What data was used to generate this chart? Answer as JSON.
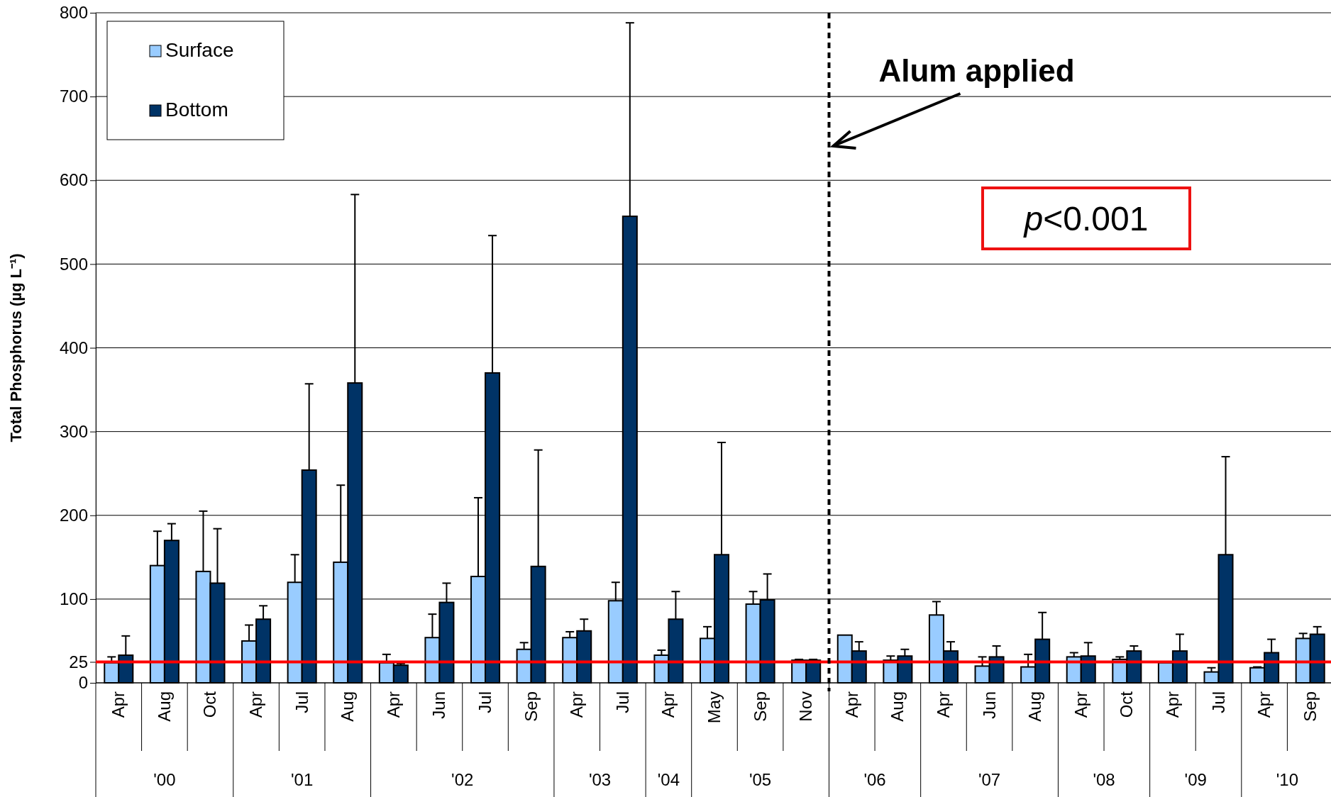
{
  "chart_data": {
    "type": "bar",
    "ylabel": "Total Phosphorus (µg L⁻¹)",
    "categories": [
      "Apr",
      "Aug",
      "Oct",
      "Apr",
      "Jul",
      "Aug",
      "Apr",
      "Jun",
      "Jul",
      "Sep",
      "Apr",
      "Jul",
      "Apr",
      "May",
      "Sep",
      "Nov",
      "Apr",
      "Aug",
      "Apr",
      "Jun",
      "Aug",
      "Apr",
      "Oct",
      "Apr",
      "Jul",
      "Apr",
      "Sep"
    ],
    "series": [
      {
        "name": "Surface",
        "color": "#99ccff",
        "values": [
          24,
          140,
          133,
          50,
          120,
          144,
          24,
          54,
          127,
          40,
          54,
          98,
          33,
          53,
          94,
          27,
          57,
          27,
          81,
          20,
          19,
          31,
          28,
          24,
          13,
          18,
          53
        ],
        "errors": [
          [
            24,
            31
          ],
          [
            140,
            181
          ],
          [
            133,
            205
          ],
          [
            50,
            69
          ],
          [
            120,
            153
          ],
          [
            144,
            236
          ],
          [
            24,
            34
          ],
          [
            54,
            82
          ],
          [
            127,
            221
          ],
          [
            40,
            48
          ],
          [
            54,
            61
          ],
          [
            98,
            120
          ],
          [
            33,
            39
          ],
          [
            53,
            67
          ],
          [
            94,
            109
          ],
          [
            27,
            28
          ],
          null,
          [
            27,
            32
          ],
          [
            81,
            97
          ],
          [
            20,
            31
          ],
          [
            19,
            34
          ],
          [
            31,
            36
          ],
          [
            28,
            31
          ],
          null,
          [
            13,
            18
          ],
          [
            18,
            19
          ],
          [
            53,
            59
          ]
        ]
      },
      {
        "name": "Bottom",
        "color": "#003366",
        "values": [
          33,
          170,
          119,
          76,
          254,
          358,
          21,
          96,
          370,
          139,
          62,
          557,
          76,
          153,
          99,
          27,
          38,
          32,
          38,
          31,
          52,
          32,
          38,
          38,
          153,
          36,
          58
        ],
        "errors": [
          [
            33,
            56
          ],
          [
            170,
            190
          ],
          [
            119,
            184
          ],
          [
            76,
            92
          ],
          [
            254,
            357
          ],
          [
            358,
            583
          ],
          [
            21,
            23
          ],
          [
            96,
            119
          ],
          [
            370,
            534
          ],
          [
            139,
            278
          ],
          [
            62,
            76
          ],
          [
            557,
            788
          ],
          [
            76,
            109
          ],
          [
            153,
            287
          ],
          [
            99,
            130
          ],
          [
            27,
            28
          ],
          [
            38,
            49
          ],
          [
            32,
            40
          ],
          [
            38,
            49
          ],
          [
            31,
            44
          ],
          [
            52,
            84
          ],
          [
            32,
            48
          ],
          [
            38,
            44
          ],
          [
            38,
            58
          ],
          [
            153,
            270
          ],
          [
            36,
            52
          ],
          [
            58,
            67
          ]
        ]
      }
    ],
    "ylim": [
      0,
      800
    ],
    "yticks": [
      0,
      25,
      100,
      200,
      300,
      400,
      500,
      600,
      700,
      800
    ],
    "grid": "y",
    "legend": "top left",
    "ref_lines": [
      {
        "axis": "y",
        "value": 25,
        "color": "#ff0000",
        "line_style": "solid"
      }
    ],
    "annotations": [
      "Alum applied",
      "p<0.001",
      "'00",
      "'01",
      "'02",
      "'03",
      "'04",
      "'05",
      "'06",
      "'07",
      "'08",
      "'09",
      "'10"
    ]
  }
}
